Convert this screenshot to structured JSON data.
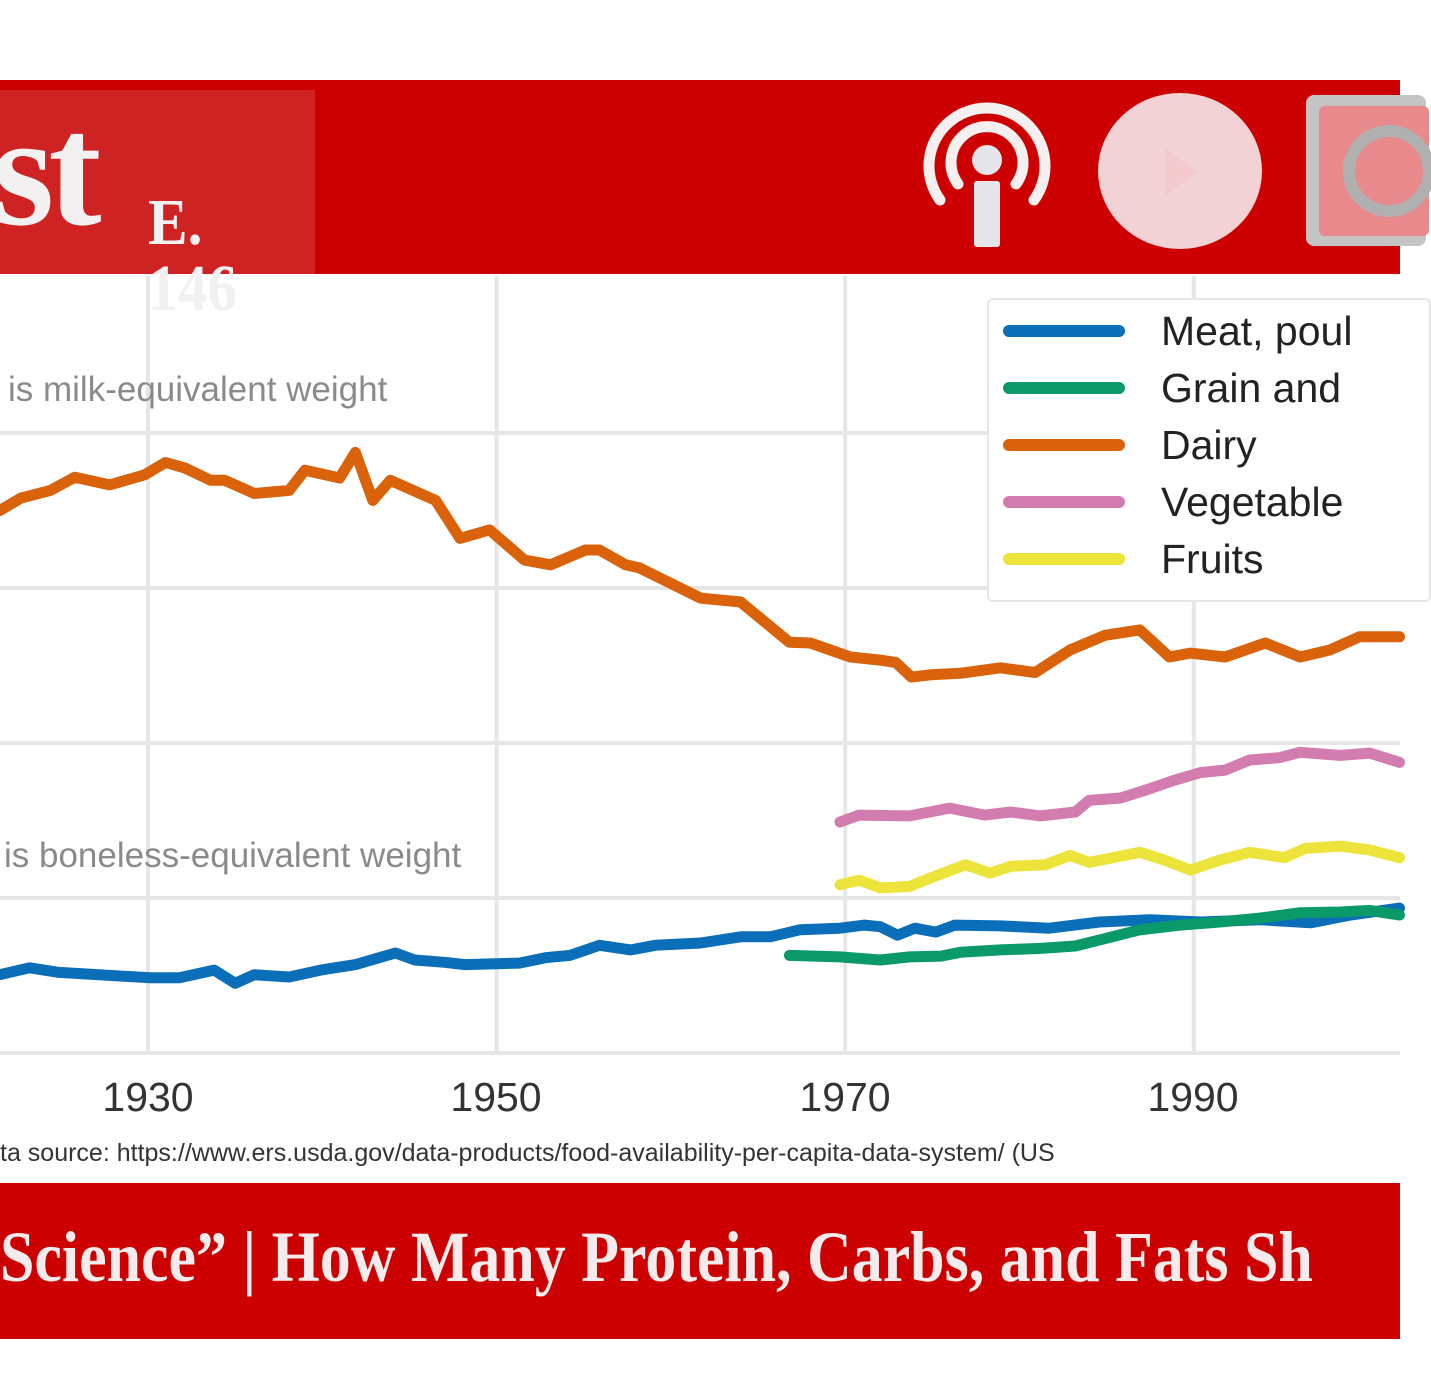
{
  "header": {
    "title_fragment": "st",
    "episode": "E. 146",
    "icons": [
      "podcast-icon",
      "play-icon",
      "record-icon"
    ],
    "banner_color": "#cc0000"
  },
  "footer": {
    "episode_title": "Science” | How Many Protein, Carbs, and Fats Sh"
  },
  "chart_data": {
    "type": "line",
    "title": "",
    "xlabel": "",
    "ylabel": "",
    "x_ticks": [
      "1930",
      "1950",
      "1970",
      "1990"
    ],
    "xlim": [
      1921.5,
      2001.8
    ],
    "ylim": [
      0,
      1000
    ],
    "grid": true,
    "legend_position": "top-right",
    "annotations": [
      "is milk-equivalent weight",
      "is boneless-equivalent weight"
    ],
    "source": "ta source: https://www.ers.usda.gov/data-products/food-availability-per-capita-data-system/ (US",
    "series": [
      {
        "name": "Meat, poul",
        "color": "#0a6fb8",
        "x": [
          1921.5,
          1923.2,
          1924.9,
          1927.2,
          1930.1,
          1931.8,
          1933.8,
          1935.0,
          1936.1,
          1938.1,
          1939.9,
          1941.9,
          1944.2,
          1945.3,
          1947.0,
          1948.2,
          1951.3,
          1952.8,
          1954.2,
          1955.9,
          1957.7,
          1959.1,
          1961.7,
          1964.0,
          1965.7,
          1967.4,
          1969.7,
          1971.1,
          1972.0,
          1973.0,
          1974.0,
          1975.2,
          1976.3,
          1978.9,
          1981.7,
          1984.6,
          1987.5,
          1990.4,
          1993.8,
          1996.7,
          1999.0,
          2001.8
        ],
        "y": [
          101,
          110,
          104,
          101,
          97,
          97,
          107,
          90,
          101,
          98,
          107,
          114,
          129,
          120,
          117,
          114,
          116,
          123,
          126,
          139,
          133,
          139,
          142,
          150,
          150,
          159,
          161,
          165,
          163,
          152,
          161,
          156,
          165,
          164,
          161,
          169,
          172,
          169,
          172,
          168,
          178,
          187
        ]
      },
      {
        "name": "Grain and",
        "color": "#0a9a6a",
        "x": [
          1966.8,
          1969.7,
          1972.0,
          1973.7,
          1975.5,
          1976.6,
          1978.9,
          1981.2,
          1983.2,
          1984.6,
          1986.9,
          1989.2,
          1991.5,
          1993.8,
          1996.1,
          1998.4,
          2000.1,
          2001.8
        ],
        "y": [
          126,
          124,
          120,
          124,
          125,
          130,
          133,
          135,
          138,
          146,
          159,
          165,
          169,
          174,
          181,
          182,
          184,
          178
        ]
      },
      {
        "name": "Dairy",
        "color": "#d9620a",
        "x": [
          1921.5,
          1922.7,
          1924.4,
          1925.8,
          1927.8,
          1929.8,
          1931.0,
          1932.1,
          1933.6,
          1934.4,
          1936.1,
          1938.1,
          1939.0,
          1941.0,
          1941.9,
          1942.9,
          1943.9,
          1946.5,
          1947.9,
          1949.6,
          1951.6,
          1953.1,
          1955.1,
          1955.9,
          1957.4,
          1958.2,
          1961.7,
          1964.0,
          1966.8,
          1968.0,
          1970.3,
          1972.0,
          1972.9,
          1973.8,
          1974.9,
          1976.6,
          1978.9,
          1980.9,
          1982.9,
          1984.9,
          1986.9,
          1988.6,
          1989.8,
          1991.8,
          1994.1,
          1996.1,
          1997.8,
          1999.5,
          2001.8
        ],
        "y": [
          700,
          716,
          726,
          743,
          733,
          746,
          762,
          755,
          739,
          739,
          722,
          726,
          752,
          742,
          775,
          713,
          739,
          713,
          664,
          675,
          636,
          630,
          649,
          649,
          630,
          626,
          587,
          582,
          530,
          529,
          511,
          507,
          504,
          485,
          488,
          490,
          497,
          491,
          520,
          539,
          546,
          511,
          516,
          511,
          529,
          511,
          520,
          537,
          537
        ]
      },
      {
        "name": "Vegetable",
        "color": "#d27cb0",
        "x": [
          1969.7,
          1970.8,
          1973.7,
          1976.0,
          1978.0,
          1979.5,
          1981.2,
          1983.2,
          1984.0,
          1985.8,
          1987.2,
          1988.9,
          1990.4,
          1991.8,
          1993.2,
          1994.9,
          1996.1,
          1998.4,
          2000.1,
          2001.8
        ],
        "y": [
          298,
          307,
          306,
          316,
          307,
          311,
          306,
          311,
          326,
          329,
          339,
          352,
          362,
          365,
          378,
          381,
          388,
          384,
          387,
          375
        ]
      },
      {
        "name": "Fruits",
        "color": "#ece43a",
        "x": [
          1969.7,
          1970.8,
          1972.0,
          1973.7,
          1974.9,
          1976.9,
          1978.3,
          1979.5,
          1981.5,
          1982.9,
          1984.0,
          1986.9,
          1988.3,
          1989.8,
          1991.5,
          1993.2,
          1995.2,
          1996.4,
          1998.4,
          2000.1,
          2001.8
        ],
        "y": [
          217,
          223,
          213,
          215,
          226,
          243,
          232,
          241,
          243,
          255,
          246,
          259,
          249,
          236,
          249,
          259,
          252,
          264,
          267,
          262,
          252
        ]
      }
    ]
  }
}
